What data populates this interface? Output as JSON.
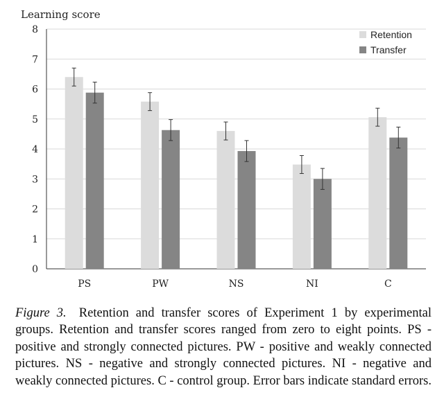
{
  "chart_data": {
    "type": "bar",
    "ylabel": "Learning score",
    "ylim": [
      0,
      8
    ],
    "yticks": [
      0,
      1,
      2,
      3,
      4,
      5,
      6,
      7,
      8
    ],
    "grid": true,
    "legend_position": "top-right",
    "categories": [
      "PS",
      "PW",
      "NS",
      "NI",
      "C"
    ],
    "series": [
      {
        "name": "Retention",
        "color": "#dcdcdc",
        "values": [
          6.4,
          5.58,
          4.6,
          3.48,
          5.06
        ],
        "errors": [
          0.3,
          0.3,
          0.3,
          0.3,
          0.3
        ]
      },
      {
        "name": "Transfer",
        "color": "#858585",
        "values": [
          5.88,
          4.63,
          3.93,
          3.0,
          4.38
        ],
        "errors": [
          0.35,
          0.35,
          0.35,
          0.35,
          0.35
        ]
      }
    ]
  },
  "caption": {
    "label": "Figure 3.",
    "text": "Retention and transfer scores of Experiment 1 by experimental groups. Retention and transfer scores ranged from zero to eight points. PS - positive and strongly connected pictures. PW - positive and weakly connected pictures. NS - negative and strongly connected pictures. NI - negative and weakly connected pictures. C - control group. Error bars indicate standard errors."
  }
}
